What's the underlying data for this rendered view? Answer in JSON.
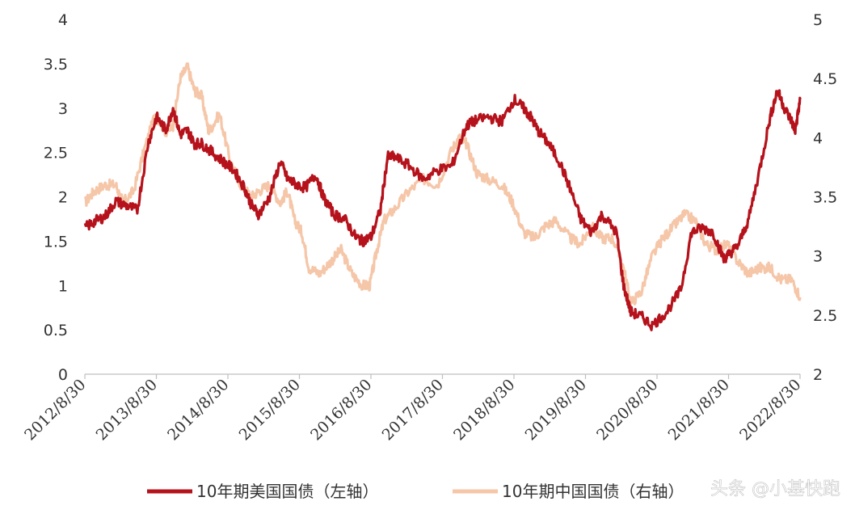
{
  "chart_data": {
    "type": "line",
    "title": "",
    "xlabel": "",
    "ylabel": "",
    "x_ticks": [
      "2012/8/30",
      "2013/8/30",
      "2014/8/30",
      "2015/8/30",
      "2016/8/30",
      "2017/8/30",
      "2018/8/30",
      "2019/8/30",
      "2020/8/30",
      "2021/8/30",
      "2022/8/30"
    ],
    "y_left_ticks": [
      "0",
      "0.5",
      "1",
      "1.5",
      "2",
      "2.5",
      "3",
      "3.5",
      "4"
    ],
    "y_right_ticks": [
      "2",
      "2.5",
      "3",
      "3.5",
      "4",
      "4.5",
      "5"
    ],
    "ylim_left": [
      0,
      4
    ],
    "ylim_right": [
      2,
      5
    ],
    "xlim": [
      2012.667,
      2022.667
    ],
    "grid": false,
    "legend_position": "bottom",
    "colors": {
      "us": "#b5121b",
      "cn": "#f5c6a8"
    },
    "series": [
      {
        "name": "10年期美国国债（左轴）",
        "axis": "left",
        "color": "#b5121b",
        "x": [
          2012.67,
          2012.8,
          2012.95,
          2013.1,
          2013.25,
          2013.4,
          2013.55,
          2013.67,
          2013.8,
          2013.9,
          2014.0,
          2014.1,
          2014.2,
          2014.3,
          2014.45,
          2014.6,
          2014.75,
          2014.9,
          2015.0,
          2015.1,
          2015.25,
          2015.4,
          2015.5,
          2015.6,
          2015.75,
          2015.9,
          2016.0,
          2016.15,
          2016.3,
          2016.45,
          2016.55,
          2016.67,
          2016.8,
          2016.9,
          2017.0,
          2017.2,
          2017.4,
          2017.6,
          2017.8,
          2018.0,
          2018.1,
          2018.3,
          2018.5,
          2018.67,
          2018.8,
          2018.9,
          2019.0,
          2019.15,
          2019.3,
          2019.45,
          2019.6,
          2019.75,
          2019.9,
          2020.1,
          2020.2,
          2020.3,
          2020.45,
          2020.6,
          2020.8,
          2021.0,
          2021.15,
          2021.3,
          2021.45,
          2021.6,
          2021.67,
          2021.8,
          2021.95,
          2022.1,
          2022.25,
          2022.35,
          2022.45,
          2022.55,
          2022.6,
          2022.67
        ],
        "values": [
          1.65,
          1.72,
          1.78,
          1.95,
          1.9,
          1.85,
          2.6,
          2.9,
          2.75,
          3.0,
          2.7,
          2.75,
          2.6,
          2.6,
          2.5,
          2.4,
          2.3,
          2.1,
          1.9,
          1.8,
          2.0,
          2.4,
          2.2,
          2.15,
          2.1,
          2.25,
          2.0,
          1.8,
          1.75,
          1.55,
          1.5,
          1.55,
          1.85,
          2.45,
          2.45,
          2.35,
          2.2,
          2.3,
          2.35,
          2.8,
          2.85,
          2.9,
          2.85,
          3.1,
          3.0,
          2.9,
          2.75,
          2.6,
          2.4,
          2.1,
          1.75,
          1.6,
          1.8,
          1.6,
          1.0,
          0.7,
          0.65,
          0.55,
          0.7,
          0.95,
          1.6,
          1.65,
          1.6,
          1.3,
          1.35,
          1.45,
          1.75,
          2.3,
          2.9,
          3.2,
          3.0,
          2.85,
          2.75,
          3.1
        ]
      },
      {
        "name": "10年期中国国债（右轴）",
        "axis": "right",
        "color": "#f5c6a8",
        "x": [
          2012.67,
          2012.8,
          2012.95,
          2013.1,
          2013.2,
          2013.35,
          2013.5,
          2013.65,
          2013.8,
          2013.9,
          2014.0,
          2014.1,
          2014.2,
          2014.3,
          2014.4,
          2014.55,
          2014.7,
          2014.85,
          2015.0,
          2015.1,
          2015.25,
          2015.4,
          2015.5,
          2015.6,
          2015.7,
          2015.8,
          2015.95,
          2016.1,
          2016.25,
          2016.4,
          2016.55,
          2016.65,
          2016.75,
          2016.85,
          2017.0,
          2017.2,
          2017.4,
          2017.6,
          2017.8,
          2017.9,
          2018.0,
          2018.15,
          2018.3,
          2018.5,
          2018.65,
          2018.8,
          2018.95,
          2019.1,
          2019.25,
          2019.45,
          2019.6,
          2019.75,
          2019.9,
          2020.05,
          2020.2,
          2020.3,
          2020.45,
          2020.6,
          2020.75,
          2020.9,
          2021.05,
          2021.2,
          2021.35,
          2021.5,
          2021.65,
          2021.8,
          2021.95,
          2022.1,
          2022.25,
          2022.4,
          2022.55,
          2022.67
        ],
        "values": [
          3.45,
          3.55,
          3.6,
          3.6,
          3.45,
          3.55,
          3.9,
          4.2,
          4.05,
          4.1,
          4.5,
          4.6,
          4.4,
          4.35,
          4.05,
          4.2,
          3.8,
          3.6,
          3.5,
          3.55,
          3.6,
          3.45,
          3.55,
          3.3,
          3.2,
          2.9,
          2.85,
          2.95,
          3.05,
          2.85,
          2.75,
          2.75,
          3.05,
          3.3,
          3.4,
          3.55,
          3.65,
          3.6,
          3.9,
          4.0,
          3.95,
          3.7,
          3.65,
          3.6,
          3.45,
          3.2,
          3.15,
          3.25,
          3.3,
          3.15,
          3.1,
          3.25,
          3.15,
          3.15,
          2.9,
          2.6,
          2.7,
          3.0,
          3.15,
          3.25,
          3.35,
          3.3,
          3.1,
          3.05,
          3.1,
          2.95,
          2.85,
          2.9,
          2.9,
          2.8,
          2.8,
          2.65
        ]
      }
    ]
  },
  "watermark": "头条 @小基快跑"
}
